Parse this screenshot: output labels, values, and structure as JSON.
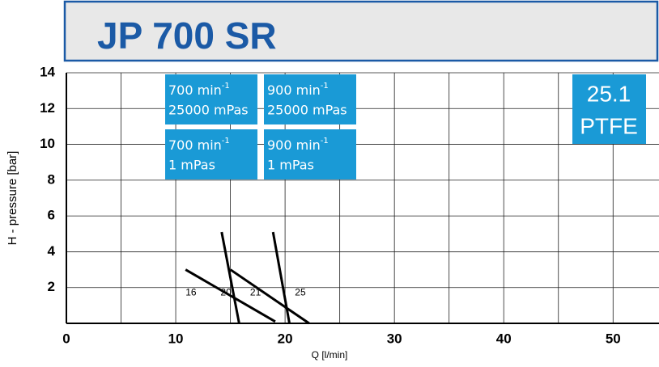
{
  "chart_data": {
    "type": "line",
    "title": "JP 700 SR",
    "xlabel": "Q [l/min]",
    "ylabel": "H - pressure [bar]",
    "xlim": [
      0,
      54.2
    ],
    "xticks": [
      0,
      10,
      20,
      30,
      40,
      50
    ],
    "xminor": [
      5,
      15,
      25,
      35,
      45
    ],
    "ylim": [
      0,
      14
    ],
    "yticks": [
      2,
      4,
      6,
      8,
      10,
      12,
      14
    ],
    "grid": true,
    "series": [
      {
        "color": "#000000",
        "x": [
          14.2,
          15.8
        ],
        "values": [
          5.1,
          0
        ]
      },
      {
        "color": "#000000",
        "x": [
          18.9,
          20.4
        ],
        "values": [
          5.1,
          0
        ]
      },
      {
        "color": "#000000",
        "x": [
          10.9,
          19.1
        ],
        "values": [
          3.0,
          0.1
        ]
      },
      {
        "color": "#000000",
        "x": [
          15.0,
          22.2
        ],
        "values": [
          3.0,
          0
        ]
      }
    ],
    "annotations": [
      {
        "text": "16",
        "x": 10.9,
        "y": 1.7
      },
      {
        "text": "20",
        "x": 14.1,
        "y": 1.7
      },
      {
        "text": "21",
        "x": 16.8,
        "y": 1.7
      },
      {
        "text": "25",
        "x": 20.9,
        "y": 1.7
      }
    ],
    "boxes": [
      {
        "speed": "700 min",
        "exp": "-1",
        "viscosity": "25000 mPas"
      },
      {
        "speed": "900 min",
        "exp": "-1",
        "viscosity": "25000 mPas"
      },
      {
        "speed": "700 min",
        "exp": "-1",
        "viscosity": "1 mPas"
      },
      {
        "speed": "900 min",
        "exp": "-1",
        "viscosity": "1 mPas"
      }
    ],
    "badge": {
      "line1": "25.1",
      "line2": "PTFE"
    },
    "box_color": "#1a9ad6"
  }
}
